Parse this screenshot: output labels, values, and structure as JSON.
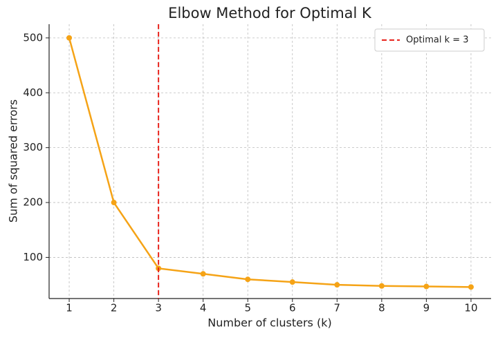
{
  "chart_data": {
    "type": "line",
    "title": "Elbow Method for Optimal K",
    "x_label": "Number of clusters (k)",
    "y_label": "Sum of squared errors",
    "x": [
      1,
      2,
      3,
      4,
      5,
      6,
      7,
      8,
      9,
      10
    ],
    "series": [
      {
        "color": "#f5a316",
        "values": [
          500,
          200,
          80,
          70,
          60,
          55,
          50,
          48,
          47,
          46
        ]
      }
    ],
    "vlines": [
      {
        "x": 3,
        "name": "Optimal k = 3",
        "color": "#e8231c"
      }
    ],
    "xlim": [
      0.55,
      10.45
    ],
    "xticks": [
      1,
      2,
      3,
      4,
      5,
      6,
      7,
      8,
      9,
      10
    ],
    "ylim": [
      25,
      525
    ],
    "yticks": [
      100,
      200,
      300,
      400,
      500
    ],
    "grid": true,
    "legend": "upper right"
  }
}
